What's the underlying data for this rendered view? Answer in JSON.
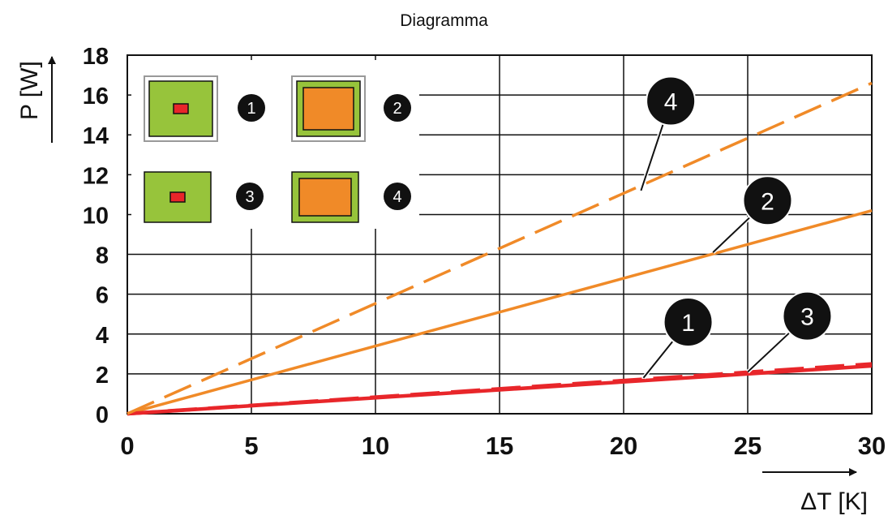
{
  "title": "Diagramma",
  "colors": {
    "orange": "#F08A28",
    "red": "#E8262A",
    "green": "#97C43B",
    "grid": "#111111",
    "label_bg": "#111111"
  },
  "chart_data": {
    "type": "line",
    "title": "Diagramma",
    "xlabel": "ΔT [K]",
    "ylabel": "P [W]",
    "xlim": [
      0,
      30
    ],
    "ylim": [
      0,
      18
    ],
    "x_ticks": [
      "0",
      "5",
      "10",
      "15",
      "20",
      "25",
      "30"
    ],
    "y_ticks": [
      "0",
      "2",
      "4",
      "6",
      "8",
      "10",
      "12",
      "14",
      "16",
      "18"
    ],
    "grid": true,
    "series": [
      {
        "name": "1",
        "style": "solid",
        "color": "#E8262A",
        "x": [
          0,
          30
        ],
        "y": [
          0,
          2.4
        ]
      },
      {
        "name": "2",
        "style": "solid",
        "color": "#F08A28",
        "x": [
          0,
          30
        ],
        "y": [
          0,
          10.2
        ]
      },
      {
        "name": "3",
        "style": "dashed",
        "color": "#E8262A",
        "x": [
          0,
          30
        ],
        "y": [
          0,
          2.5
        ]
      },
      {
        "name": "4",
        "style": "dashed",
        "color": "#F08A28",
        "x": [
          0,
          30
        ],
        "y": [
          0,
          16.6
        ]
      }
    ],
    "series_labels": [
      {
        "label": "1",
        "x": 20.8,
        "y": 1.8
      },
      {
        "label": "2",
        "x": 23.6,
        "y": 8.1
      },
      {
        "label": "3",
        "x": 25.0,
        "y": 2.1
      },
      {
        "label": "4",
        "x": 20.7,
        "y": 11.2
      }
    ],
    "legend": {
      "placement": "top-left",
      "items": [
        {
          "label": "1",
          "element": "small",
          "frame": true
        },
        {
          "label": "2",
          "element": "large",
          "frame": true
        },
        {
          "label": "3",
          "element": "small",
          "frame": false
        },
        {
          "label": "4",
          "element": "large",
          "frame": false
        }
      ]
    }
  }
}
